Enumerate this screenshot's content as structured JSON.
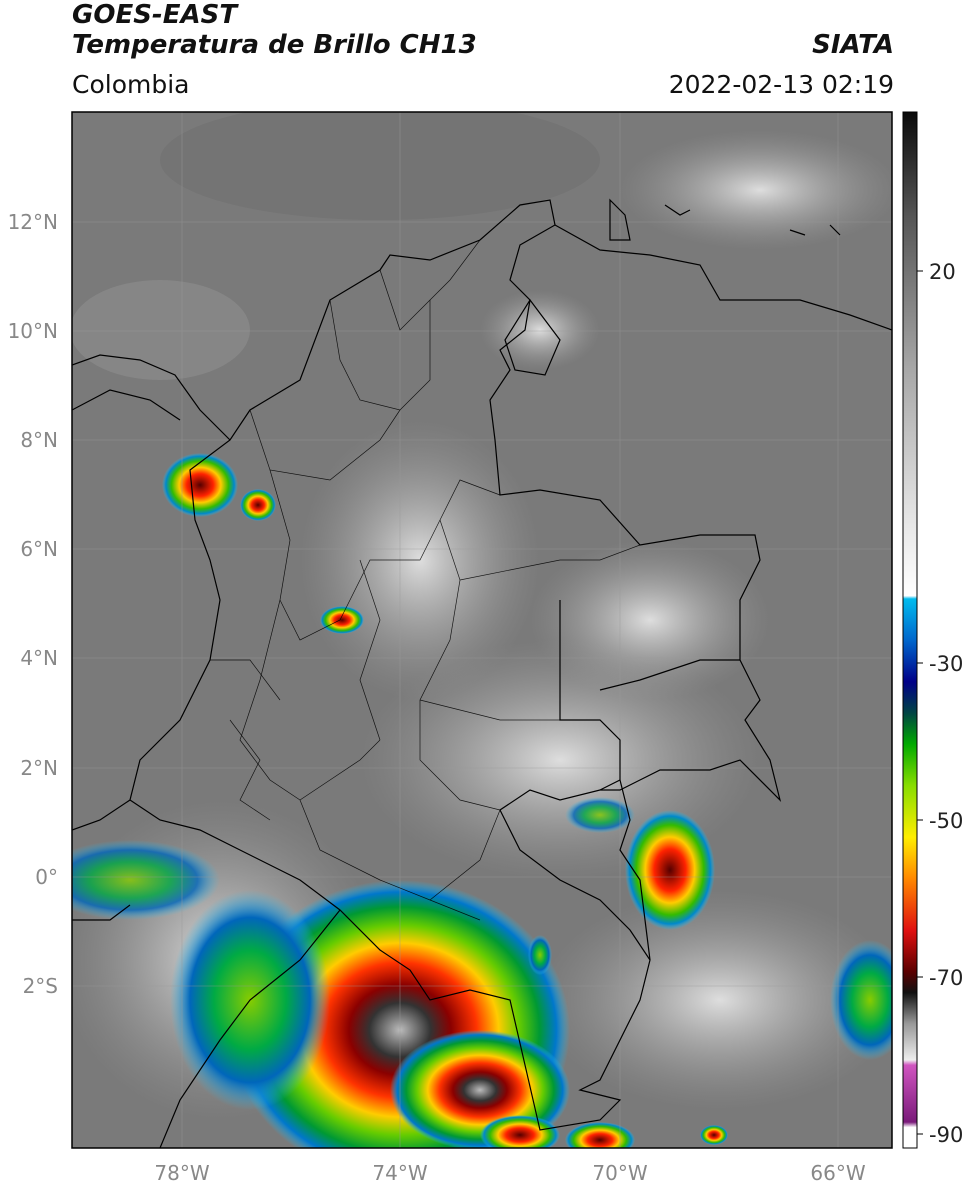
{
  "header": {
    "satellite": "GOES-EAST",
    "product": "Temperatura de Brillo CH13",
    "organization": "SIATA",
    "region": "Colombia",
    "timestamp": "2022-02-13 02:19"
  },
  "map": {
    "lon_labels": [
      "78°W",
      "74°W",
      "70°W",
      "66°W"
    ],
    "lat_labels": [
      "12°N",
      "10°N",
      "8°N",
      "6°N",
      "4°N",
      "2°N",
      "0°",
      "2°S"
    ]
  },
  "colorbar": {
    "tick_labels": [
      "20",
      "-30",
      "-50",
      "-70",
      "-90"
    ]
  },
  "colors": {
    "background_gray": "#7a7a7a",
    "frame": "#000000"
  }
}
